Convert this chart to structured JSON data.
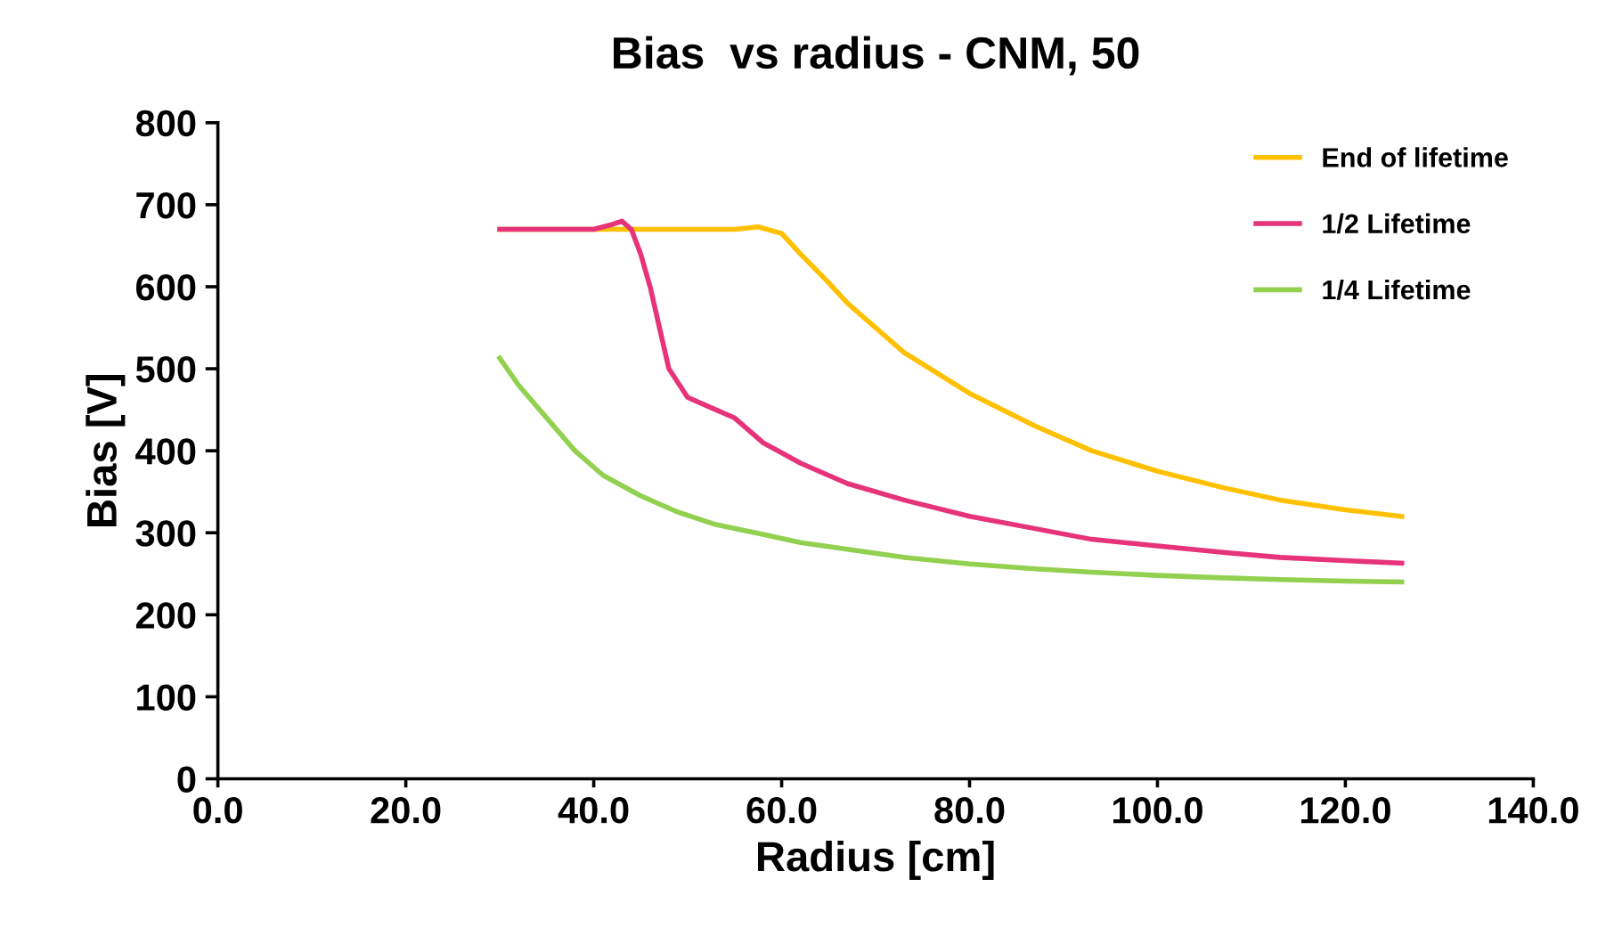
{
  "chart_data": {
    "type": "line",
    "title": "Bias  vs radius - CNM, 50",
    "xlabel": "Radius [cm]",
    "ylabel": "Bias [V]",
    "xlim": [
      0,
      140
    ],
    "xticks": [
      {
        "value": 0,
        "label": "0.0"
      },
      {
        "value": 20,
        "label": "20.0"
      },
      {
        "value": 40,
        "label": "40.0"
      },
      {
        "value": 60,
        "label": "60.0"
      },
      {
        "value": 80,
        "label": "80.0"
      },
      {
        "value": 100,
        "label": "100.0"
      },
      {
        "value": 120,
        "label": "120.0"
      },
      {
        "value": 140,
        "label": "140.0"
      }
    ],
    "ylim": [
      0,
      800
    ],
    "yticks": [
      0,
      100,
      200,
      300,
      400,
      500,
      600,
      700,
      800
    ],
    "grid": false,
    "legend": "top right",
    "marker": "none",
    "line_style": "solid",
    "series": [
      {
        "name": "End of lifetime",
        "color": "#ffc000",
        "x": [
          30,
          40,
          50,
          55,
          57.5,
          60,
          62,
          65,
          67,
          70,
          73,
          80,
          87,
          93,
          100,
          107,
          113,
          120,
          126
        ],
        "values": [
          670,
          670,
          670,
          670,
          673,
          665,
          640,
          605,
          580,
          550,
          520,
          470,
          430,
          400,
          375,
          355,
          340,
          328,
          320
        ]
      },
      {
        "name": "1/2 Lifetime",
        "color": "#e6337a",
        "x": [
          30,
          40,
          42,
          43,
          44,
          45,
          46,
          47,
          48,
          50,
          53,
          55,
          58,
          62,
          67,
          73,
          80,
          87,
          93,
          100,
          107,
          113,
          120,
          126
        ],
        "values": [
          670,
          670,
          676,
          680,
          670,
          640,
          600,
          550,
          500,
          465,
          450,
          440,
          410,
          385,
          360,
          340,
          320,
          305,
          292,
          284,
          276,
          270,
          266,
          263
        ]
      },
      {
        "name": "1/4 Lifetime",
        "color": "#92d050",
        "x": [
          30,
          32,
          35,
          38,
          41,
          45,
          49,
          53,
          58,
          62,
          67,
          73,
          80,
          87,
          93,
          100,
          107,
          113,
          120,
          126
        ],
        "values": [
          513,
          480,
          440,
          400,
          370,
          345,
          325,
          310,
          298,
          288,
          280,
          270,
          262,
          256,
          252,
          248,
          245,
          243,
          241,
          240
        ]
      }
    ]
  }
}
